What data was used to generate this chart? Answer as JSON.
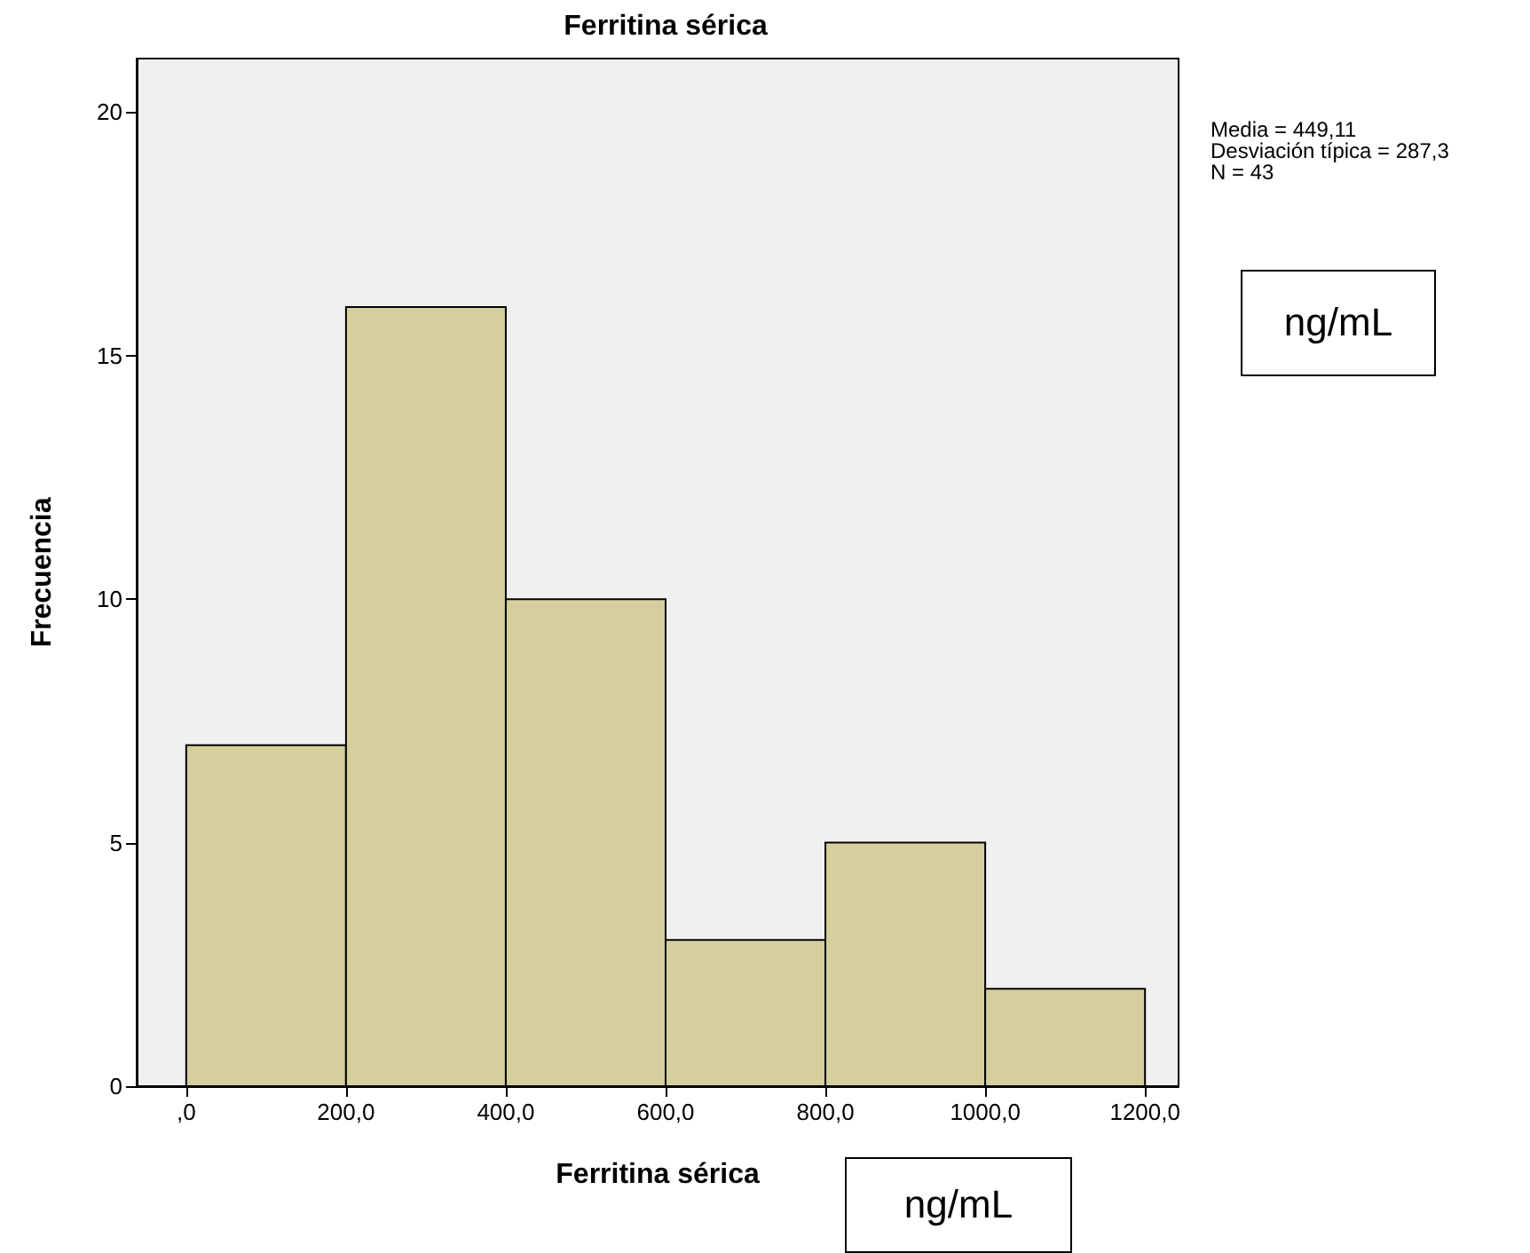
{
  "chart_data": {
    "type": "histogram",
    "title": "Ferritina sérica",
    "xlabel": "Ferritina sérica",
    "ylabel": "Frecuencia",
    "bins": [
      0,
      200,
      400,
      600,
      800,
      1000,
      1200
    ],
    "values": [
      7,
      16,
      10,
      3,
      5,
      2
    ],
    "color": "#d4cf9c",
    "xlim": [
      -62,
      1242
    ],
    "xticks": [
      {
        "value": 0,
        "label": ",0"
      },
      {
        "value": 200,
        "label": "200,0"
      },
      {
        "value": 400,
        "label": "400,0"
      },
      {
        "value": 600,
        "label": "600,0"
      },
      {
        "value": 800,
        "label": "800,0"
      },
      {
        "value": 1000,
        "label": "1000,0"
      },
      {
        "value": 1200,
        "label": "1200,0"
      }
    ],
    "ylim": [
      0,
      21.1
    ],
    "yticks": [
      0,
      5,
      10,
      15,
      20
    ],
    "grid": false,
    "annotations": [
      "Media = 449,11",
      "Desviación típica = 287,3",
      "N = 43",
      "ng/mL",
      "ng/mL"
    ]
  }
}
